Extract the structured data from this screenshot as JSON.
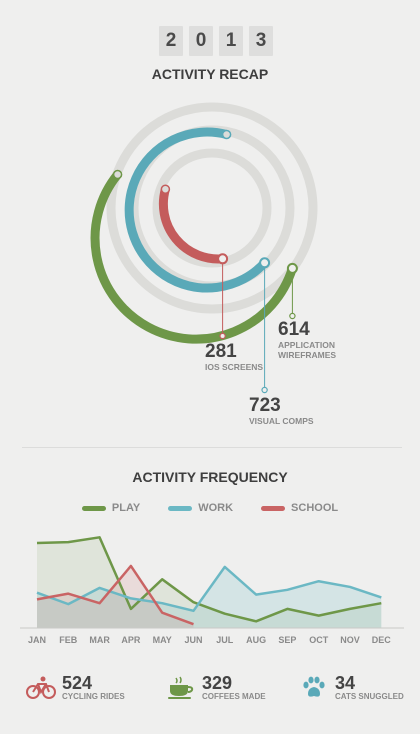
{
  "year": [
    "2",
    "0",
    "1",
    "3"
  ],
  "recap": {
    "title": "ACTIVITY RECAP",
    "stats": [
      {
        "value": "614",
        "label_line1": "APPLICATION",
        "label_line2": "WIREFRAMES",
        "color": "#6e9748"
      },
      {
        "value": "281",
        "label_line1": "IOS SCREENS",
        "label_line2": "",
        "color": "#c45c5c"
      },
      {
        "value": "723",
        "label_line1": "VISUAL COMPS",
        "label_line2": "",
        "color": "#5aa9b8"
      }
    ]
  },
  "frequency": {
    "title": "ACTIVITY FREQUENCY",
    "legend": [
      {
        "name": "PLAY",
        "color": "#6e9748"
      },
      {
        "name": "WORK",
        "color": "#6bb8c4"
      },
      {
        "name": "SCHOOL",
        "color": "#c96464"
      }
    ]
  },
  "chart_data": {
    "type": "area",
    "categories": [
      "JAN",
      "FEB",
      "MAR",
      "APR",
      "MAY",
      "JUN",
      "JUL",
      "AUG",
      "SEP",
      "OCT",
      "NOV",
      "DEC"
    ],
    "series": [
      {
        "name": "PLAY",
        "color": "#6e9748",
        "values": [
          89,
          90,
          95,
          20,
          51,
          27,
          15,
          7,
          20,
          13,
          20,
          26
        ]
      },
      {
        "name": "WORK",
        "color": "#6bb8c4",
        "values": [
          37,
          25,
          42,
          31,
          26,
          18,
          64,
          35,
          40,
          49,
          43,
          32
        ]
      },
      {
        "name": "SCHOOL",
        "color": "#c96464",
        "values": [
          30,
          36,
          26,
          65,
          16,
          4,
          null,
          null,
          null,
          null,
          null,
          null
        ]
      }
    ],
    "ylim": [
      0,
      110
    ],
    "grid": false
  },
  "footer": [
    {
      "icon": "bicycle-icon",
      "value": "524",
      "label": "CYCLING RIDES",
      "color": "#c45c5c"
    },
    {
      "icon": "coffee-cup-icon",
      "value": "329",
      "label": "COFFEES MADE",
      "color": "#6e9748"
    },
    {
      "icon": "paw-icon",
      "value": "34",
      "label": "CATS SNUGGLED",
      "color": "#5aa9b8"
    }
  ]
}
